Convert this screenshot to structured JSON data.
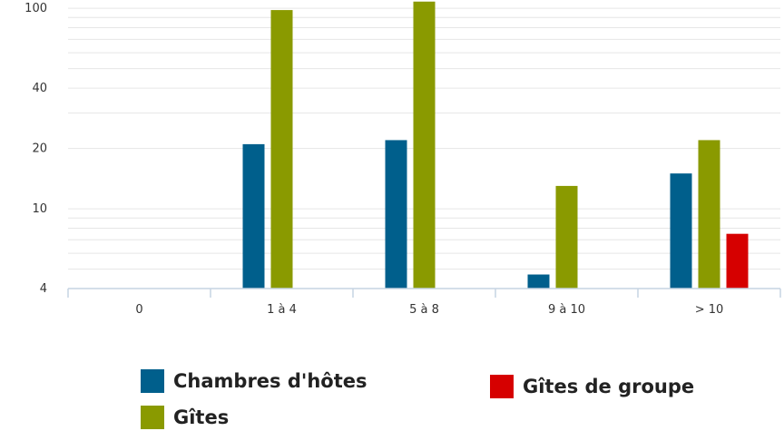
{
  "chart_data": {
    "type": "bar",
    "yscale": "log",
    "ylim": [
      4,
      110
    ],
    "yticks": [
      4,
      10,
      20,
      40,
      100
    ],
    "categories": [
      "0",
      "1 à 4",
      "5 à 8",
      "9 à 10",
      "> 10"
    ],
    "series": [
      {
        "name": "Chambres d'hôtes",
        "color": "#005f8c",
        "values": [
          null,
          21,
          22,
          4.7,
          15
        ]
      },
      {
        "name": "Gîtes",
        "color": "#8a9a00",
        "values": [
          null,
          98,
          108,
          13,
          22
        ]
      },
      {
        "name": "Gîtes de groupe",
        "color": "#d60000",
        "values": [
          null,
          null,
          null,
          null,
          7.5
        ]
      }
    ],
    "grid": true
  }
}
